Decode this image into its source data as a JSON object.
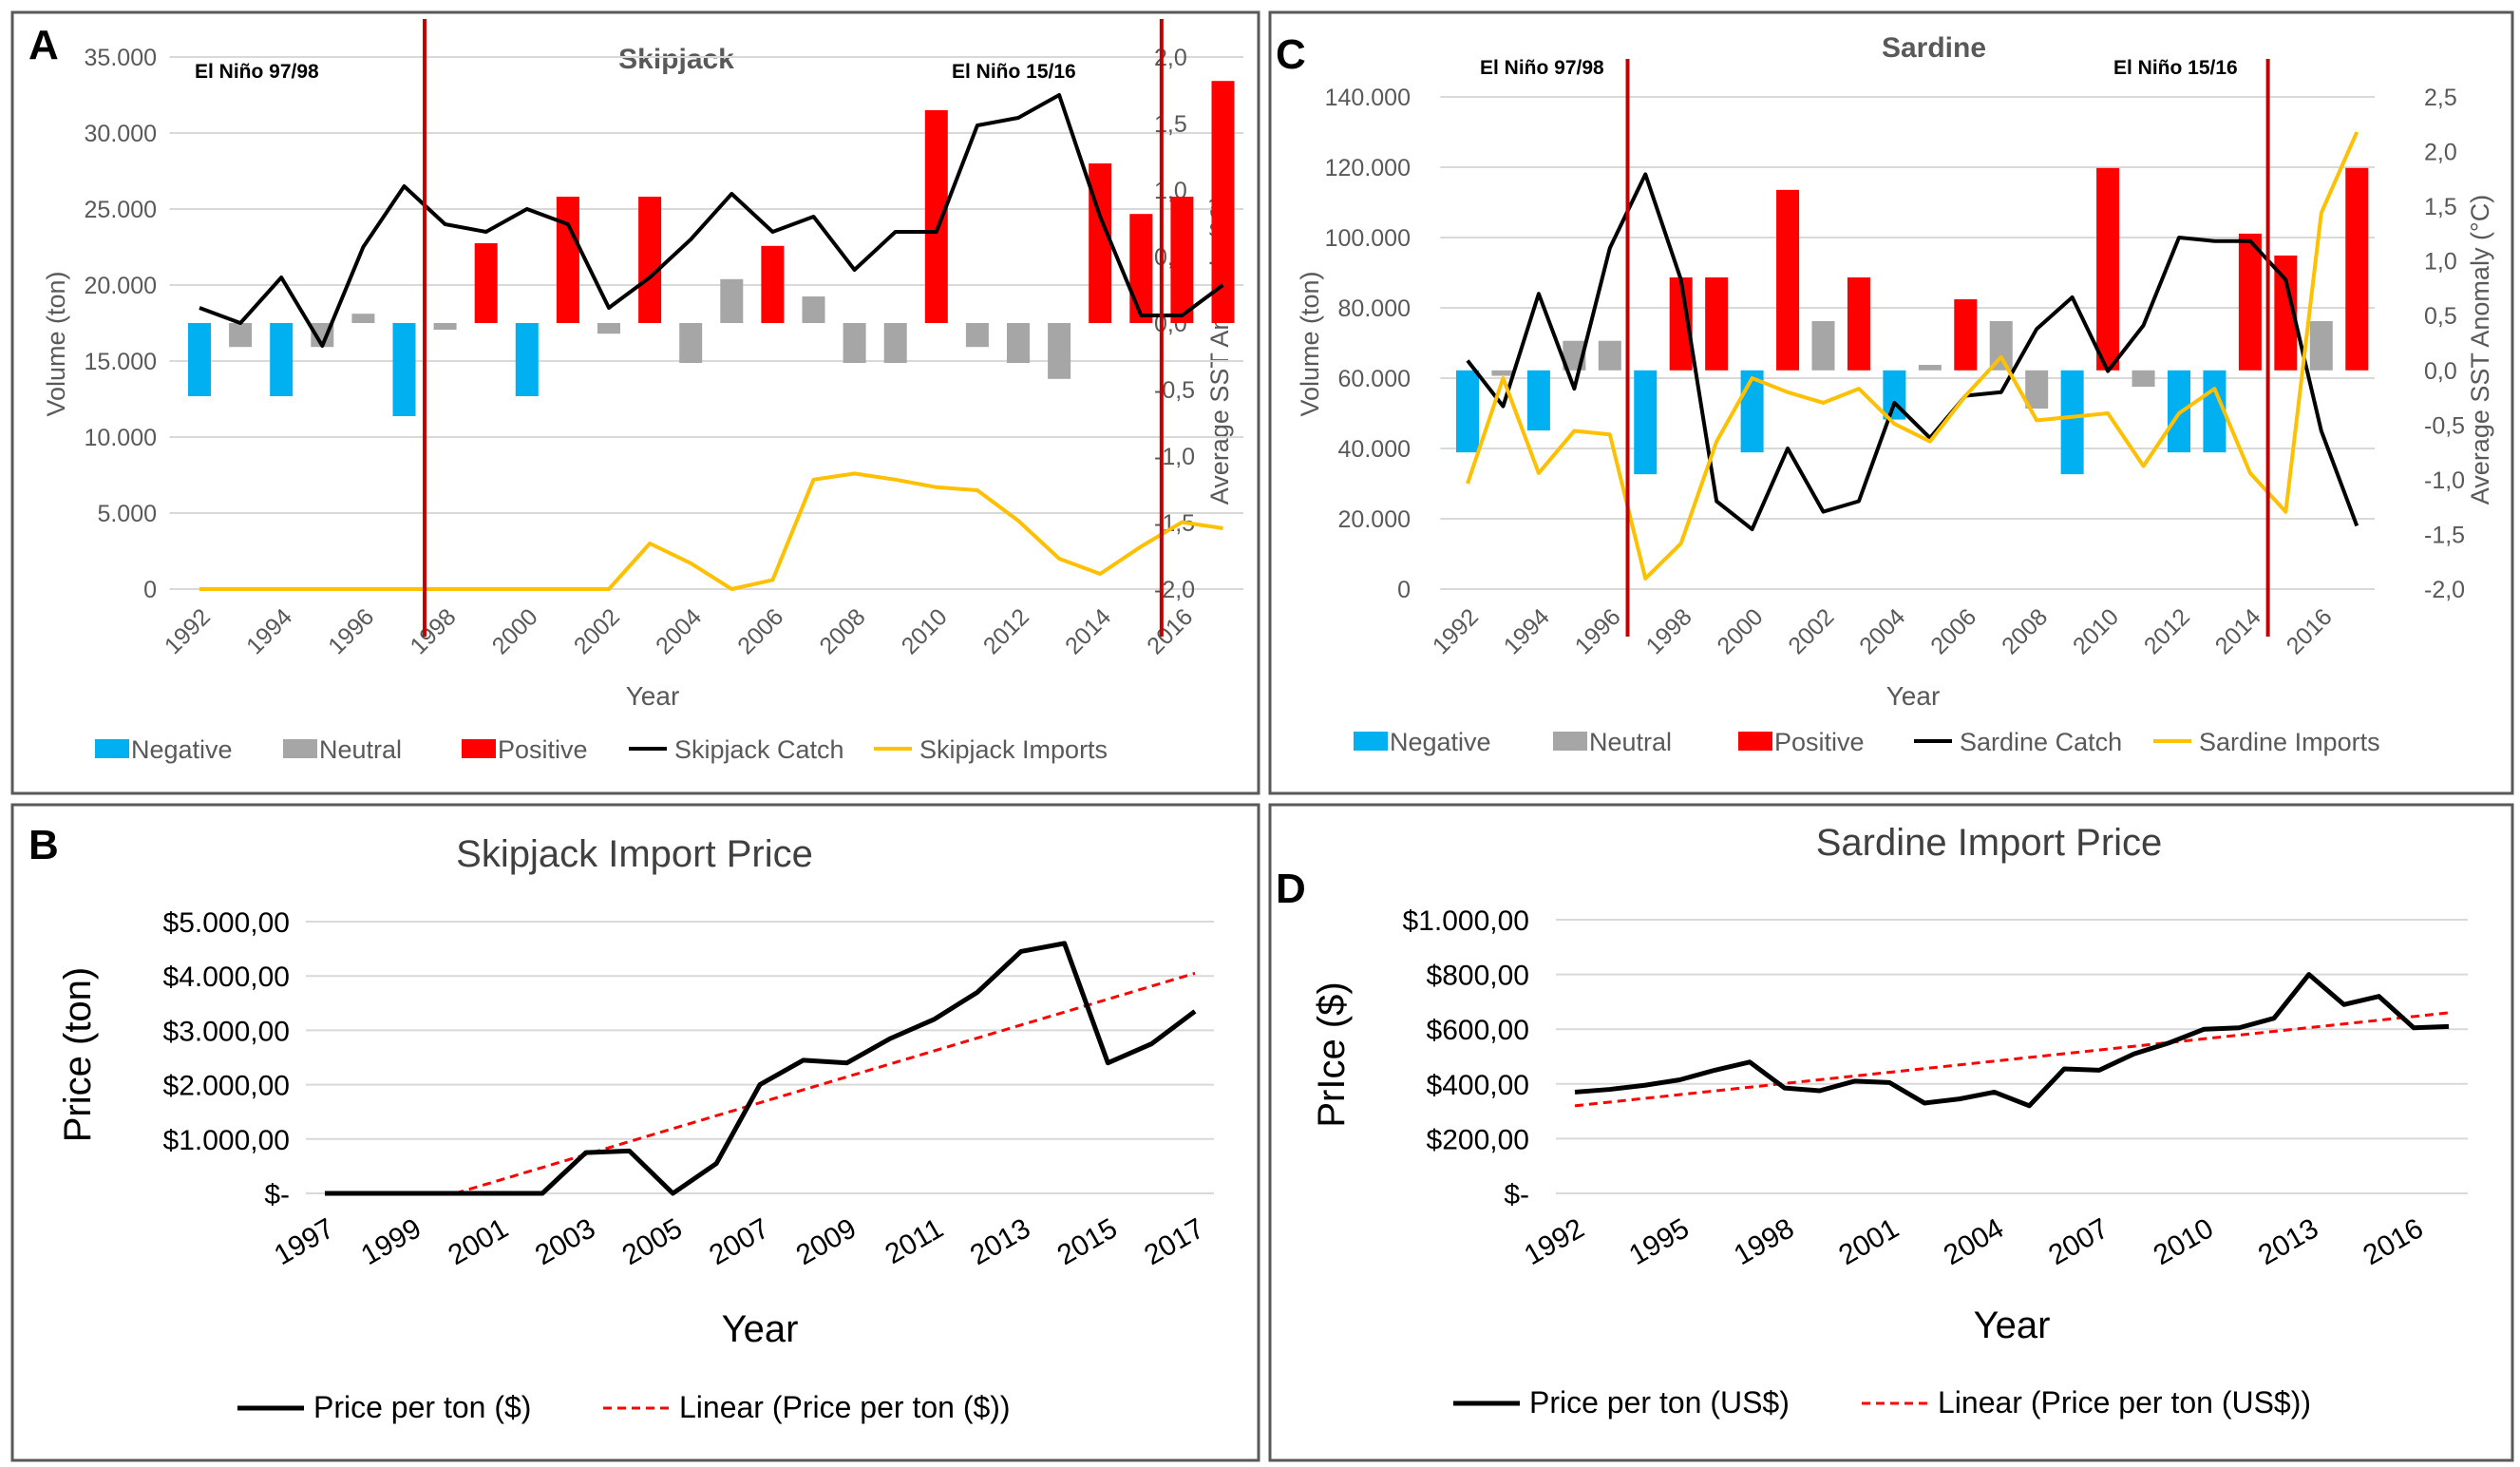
{
  "colors": {
    "negative": "#00b0f0",
    "neutral": "#a6a6a6",
    "positive": "#ff0000",
    "catch": "#000000",
    "imports": "#ffc000",
    "elnino": "#c00000",
    "trend": "#ff0000",
    "grid": "#d9d9d9"
  },
  "chart_data": [
    {
      "id": "A",
      "panel_letter": "A",
      "type": "bar+line",
      "title": "Skipjack",
      "xlabel": "Year",
      "ylabel": "Volume (ton)",
      "y2label": "Average SST Anomaly (°C)",
      "ylim": [
        0,
        35000
      ],
      "y2lim": [
        -2,
        2
      ],
      "yticks": [
        "0",
        "5.000",
        "10.000",
        "15.000",
        "20.000",
        "25.000",
        "30.000",
        "35.000"
      ],
      "y2ticks": [
        "-2,0",
        "-1,5",
        "-1,0",
        "-0,5",
        "0,0",
        "0,5",
        "1,0",
        "1,5",
        "2,0"
      ],
      "years": [
        1992,
        1993,
        1994,
        1995,
        1996,
        1997,
        1998,
        1999,
        2000,
        2001,
        2002,
        2003,
        2004,
        2005,
        2006,
        2007,
        2008,
        2009,
        2010,
        2011,
        2012,
        2013,
        2014,
        2015,
        2016,
        2017
      ],
      "xtick_labels": [
        "1992",
        "1994",
        "1996",
        "1998",
        "2000",
        "2002",
        "2004",
        "2006",
        "2008",
        "2010",
        "2012",
        "2014",
        "2016"
      ],
      "sst_anomaly": [
        -0.55,
        -0.18,
        -0.55,
        -0.18,
        0.07,
        -0.7,
        -0.05,
        0.6,
        -0.55,
        0.95,
        -0.08,
        0.95,
        -0.3,
        0.33,
        0.58,
        0.2,
        -0.3,
        -0.3,
        1.6,
        -0.18,
        -0.3,
        -0.42,
        1.2,
        0.82,
        0.95,
        1.82
      ],
      "sst_class": [
        "negative",
        "neutral",
        "negative",
        "neutral",
        "neutral",
        "negative",
        "neutral",
        "positive",
        "negative",
        "positive",
        "neutral",
        "positive",
        "neutral",
        "neutral",
        "positive",
        "neutral",
        "neutral",
        "neutral",
        "positive",
        "neutral",
        "neutral",
        "neutral",
        "positive",
        "positive",
        "positive",
        "positive"
      ],
      "series": [
        {
          "name": "Skipjack Catch",
          "values": [
            18500,
            17500,
            20500,
            16000,
            22500,
            26500,
            24000,
            23500,
            25000,
            24000,
            18500,
            20500,
            23000,
            26000,
            23500,
            24500,
            21000,
            23500,
            23500,
            30500,
            31000,
            32500,
            24500,
            18000,
            18000,
            20000
          ]
        },
        {
          "name": "Skipjack Imports",
          "values": [
            0,
            0,
            0,
            0,
            0,
            0,
            0,
            0,
            0,
            0,
            0,
            3000,
            1700,
            0,
            600,
            7200,
            7600,
            7200,
            6700,
            6500,
            4500,
            2000,
            1000,
            2800,
            4400,
            4000
          ]
        }
      ],
      "annotations": [
        {
          "text": "El Niño 97/98",
          "year": 1997.5
        },
        {
          "text": "El Niño 15/16",
          "year": 2015.5
        }
      ],
      "legend": [
        "Negative",
        "Neutral",
        "Positive",
        "Skipjack Catch",
        "Skipjack Imports"
      ]
    },
    {
      "id": "C",
      "panel_letter": "C",
      "type": "bar+line",
      "title": "Sardine",
      "xlabel": "Year",
      "ylabel": "Volume (ton)",
      "y2label": "Average SST Anomaly (°C)",
      "ylim": [
        0,
        140000
      ],
      "y2lim": [
        -2,
        2.5
      ],
      "yticks": [
        "0",
        "20.000",
        "40.000",
        "60.000",
        "80.000",
        "100.000",
        "120.000",
        "140.000"
      ],
      "y2ticks": [
        "-2,0",
        "-1,5",
        "-1,0",
        "-0,5",
        "0,0",
        "0,5",
        "1,0",
        "1,5",
        "2,0",
        "2,5"
      ],
      "years": [
        1992,
        1993,
        1994,
        1995,
        1996,
        1997,
        1998,
        1999,
        2000,
        2001,
        2002,
        2003,
        2004,
        2005,
        2006,
        2007,
        2008,
        2009,
        2010,
        2011,
        2012,
        2013,
        2014,
        2015,
        2016,
        2017
      ],
      "xtick_labels": [
        "1992",
        "1994",
        "1996",
        "1998",
        "2000",
        "2002",
        "2004",
        "2006",
        "2008",
        "2010",
        "2012",
        "2014",
        "2016"
      ],
      "sst_anomaly": [
        -0.75,
        -0.05,
        -0.55,
        0.27,
        0.27,
        -0.95,
        0.85,
        0.85,
        -0.75,
        1.65,
        0.45,
        0.85,
        -0.45,
        0.05,
        0.65,
        0.45,
        -0.35,
        -0.95,
        1.85,
        -0.15,
        -0.75,
        -0.75,
        1.25,
        1.05,
        0.45,
        1.85
      ],
      "sst_class": [
        "negative",
        "neutral",
        "negative",
        "neutral",
        "neutral",
        "negative",
        "positive",
        "positive",
        "negative",
        "positive",
        "neutral",
        "positive",
        "negative",
        "neutral",
        "positive",
        "neutral",
        "neutral",
        "negative",
        "positive",
        "neutral",
        "negative",
        "negative",
        "positive",
        "positive",
        "neutral",
        "positive"
      ],
      "series": [
        {
          "name": "Sardine Catch",
          "values": [
            65000,
            52000,
            84000,
            57000,
            97000,
            118000,
            88000,
            25000,
            17000,
            40000,
            22000,
            25000,
            53000,
            43000,
            55000,
            56000,
            74000,
            83000,
            62000,
            75000,
            100000,
            99000,
            99000,
            88000,
            45000,
            18000
          ]
        },
        {
          "name": "Sardine Imports",
          "values": [
            30000,
            60000,
            33000,
            45000,
            44000,
            3000,
            13000,
            42000,
            60000,
            56000,
            53000,
            57000,
            47000,
            42000,
            55000,
            66000,
            48000,
            49000,
            50000,
            35000,
            50000,
            57000,
            33000,
            22000,
            107000,
            130000
          ]
        }
      ],
      "annotations": [
        {
          "text": "El Niño 97/98",
          "year": 1996.5
        },
        {
          "text": "El Niño 15/16",
          "year": 2014.5
        }
      ],
      "legend": [
        "Negative",
        "Neutral",
        "Positive",
        "Sardine Catch",
        "Sardine Imports"
      ]
    },
    {
      "id": "B",
      "panel_letter": "B",
      "type": "line",
      "title": "Skipjack Import Price",
      "xlabel": "Year",
      "ylabel": "Price (ton)",
      "ylim": [
        0,
        5000
      ],
      "yticks": [
        "$-",
        "$1.000,00",
        "$2.000,00",
        "$3.000,00",
        "$4.000,00",
        "$5.000,00"
      ],
      "years": [
        1997,
        1998,
        1999,
        2000,
        2001,
        2002,
        2003,
        2004,
        2005,
        2006,
        2007,
        2008,
        2009,
        2010,
        2011,
        2012,
        2013,
        2014,
        2015,
        2016,
        2017
      ],
      "xtick_labels": [
        "1997",
        "1999",
        "2001",
        "2003",
        "2005",
        "2007",
        "2009",
        "2011",
        "2013",
        "2015",
        "2017"
      ],
      "series": [
        {
          "name": "Price per ton ($)",
          "values": [
            0,
            0,
            0,
            0,
            0,
            0,
            750,
            780,
            0,
            550,
            2000,
            2450,
            2400,
            2850,
            3200,
            3700,
            4450,
            4600,
            2400,
            2750,
            3350
          ]
        }
      ],
      "trend": {
        "name": "Linear (Price per ton ($))",
        "start_year": 2000,
        "start_value": 0,
        "end_year": 2017,
        "end_value": 4050
      },
      "legend": [
        "Price per ton ($)",
        "Linear (Price per ton ($))"
      ]
    },
    {
      "id": "D",
      "panel_letter": "D",
      "type": "line",
      "title": "Sardine Import Price",
      "xlabel": "Year",
      "ylabel": "PrIce ($)",
      "ylim": [
        0,
        1000
      ],
      "yticks": [
        "$-",
        "$200,00",
        "$400,00",
        "$600,00",
        "$800,00",
        "$1.000,00"
      ],
      "years": [
        1992,
        1993,
        1994,
        1995,
        1996,
        1997,
        1998,
        1999,
        2000,
        2001,
        2002,
        2003,
        2004,
        2005,
        2006,
        2007,
        2008,
        2009,
        2010,
        2011,
        2012,
        2013,
        2014,
        2015,
        2016,
        2017
      ],
      "xtick_labels": [
        "1992",
        "1995",
        "1998",
        "2001",
        "2004",
        "2007",
        "2010",
        "2013",
        "2016"
      ],
      "series": [
        {
          "name": "Price per ton (US$)",
          "values": [
            370,
            380,
            395,
            415,
            450,
            480,
            385,
            375,
            410,
            405,
            330,
            345,
            370,
            320,
            455,
            450,
            510,
            550,
            600,
            605,
            640,
            800,
            690,
            720,
            605,
            610
          ]
        }
      ],
      "trend": {
        "name": "Linear (Price per ton (US$))",
        "start_year": 1992,
        "start_value": 320,
        "end_year": 2017,
        "end_value": 660
      },
      "legend": [
        "Price per ton (US$)",
        "Linear (Price per ton (US$))"
      ]
    }
  ]
}
